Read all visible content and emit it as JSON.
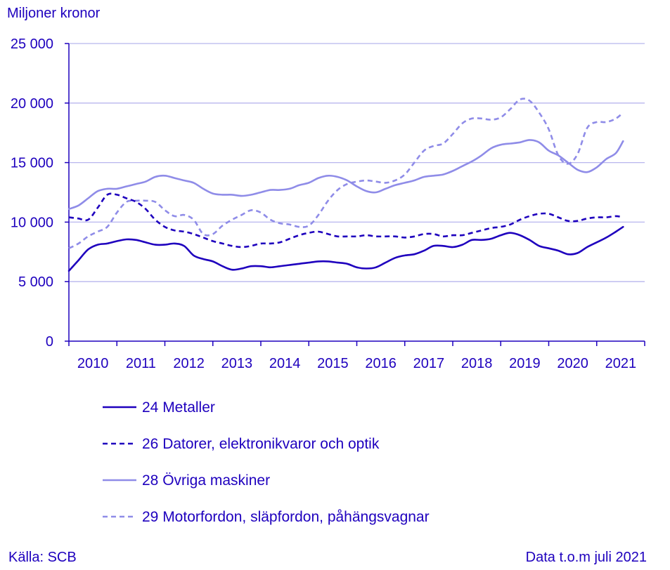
{
  "chart_data": {
    "type": "line",
    "ylabel": "Miljoner kronor",
    "ylim": [
      0,
      25000
    ],
    "yticks": [
      0,
      5000,
      10000,
      15000,
      20000,
      25000
    ],
    "ytick_labels": [
      "0",
      "5 000",
      "10 000",
      "15 000",
      "20 000",
      "25 000"
    ],
    "xlim": [
      2010,
      2022
    ],
    "x_tick_labels": [
      "2010",
      "2011",
      "2012",
      "2013",
      "2014",
      "2015",
      "2016",
      "2017",
      "2018",
      "2019",
      "2020",
      "2021"
    ],
    "grid": "horizontal",
    "legend_position": "bottom",
    "source": "Källa: SCB",
    "note": "Data t.o.m juli 2021",
    "series": [
      {
        "name": "24 Metaller",
        "color": "#1e00be",
        "dash": "solid",
        "x": [
          2010.0,
          2010.2,
          2010.4,
          2010.6,
          2010.8,
          2011.0,
          2011.2,
          2011.4,
          2011.6,
          2011.8,
          2012.0,
          2012.2,
          2012.4,
          2012.6,
          2012.8,
          2013.0,
          2013.2,
          2013.4,
          2013.6,
          2013.8,
          2014.0,
          2014.2,
          2014.4,
          2014.6,
          2014.8,
          2015.0,
          2015.2,
          2015.4,
          2015.6,
          2015.8,
          2016.0,
          2016.2,
          2016.4,
          2016.6,
          2016.8,
          2017.0,
          2017.2,
          2017.4,
          2017.6,
          2017.8,
          2018.0,
          2018.2,
          2018.4,
          2018.6,
          2018.8,
          2019.0,
          2019.2,
          2019.4,
          2019.6,
          2019.8,
          2020.0,
          2020.2,
          2020.4,
          2020.6,
          2020.8,
          2021.0,
          2021.2,
          2021.4,
          2021.55
        ],
        "values": [
          5900,
          6800,
          7700,
          8100,
          8200,
          8400,
          8550,
          8500,
          8300,
          8100,
          8100,
          8200,
          8000,
          7200,
          6900,
          6700,
          6300,
          6000,
          6100,
          6300,
          6300,
          6200,
          6300,
          6400,
          6500,
          6600,
          6700,
          6700,
          6600,
          6500,
          6200,
          6100,
          6200,
          6600,
          7000,
          7200,
          7300,
          7600,
          8000,
          8000,
          7900,
          8100,
          8500,
          8500,
          8600,
          8900,
          9100,
          8900,
          8500,
          8000,
          7800,
          7600,
          7300,
          7400,
          7900,
          8300,
          8700,
          9200,
          9600
        ]
      },
      {
        "name": "26 Datorer, elektronikvaror och optik",
        "color": "#1e00be",
        "dash": "dashed",
        "x": [
          2010.0,
          2010.2,
          2010.4,
          2010.6,
          2010.8,
          2011.0,
          2011.2,
          2011.4,
          2011.6,
          2011.8,
          2012.0,
          2012.2,
          2012.4,
          2012.6,
          2012.8,
          2013.0,
          2013.2,
          2013.4,
          2013.6,
          2013.8,
          2014.0,
          2014.2,
          2014.4,
          2014.6,
          2014.8,
          2015.0,
          2015.2,
          2015.4,
          2015.6,
          2015.8,
          2016.0,
          2016.2,
          2016.4,
          2016.6,
          2016.8,
          2017.0,
          2017.2,
          2017.4,
          2017.6,
          2017.8,
          2018.0,
          2018.2,
          2018.4,
          2018.6,
          2018.8,
          2019.0,
          2019.2,
          2019.4,
          2019.6,
          2019.8,
          2020.0,
          2020.2,
          2020.4,
          2020.6,
          2020.8,
          2021.0,
          2021.2,
          2021.4,
          2021.55
        ],
        "values": [
          10400,
          10300,
          10200,
          11200,
          12300,
          12300,
          12000,
          11700,
          11100,
          10200,
          9600,
          9300,
          9200,
          9000,
          8700,
          8400,
          8200,
          8000,
          7900,
          8000,
          8200,
          8200,
          8300,
          8600,
          8900,
          9100,
          9200,
          9000,
          8800,
          8800,
          8800,
          8900,
          8800,
          8800,
          8800,
          8700,
          8800,
          9000,
          9000,
          8800,
          8900,
          8900,
          9100,
          9300,
          9500,
          9600,
          9800,
          10200,
          10500,
          10700,
          10700,
          10400,
          10100,
          10100,
          10300,
          10400,
          10400,
          10500,
          10400
        ]
      },
      {
        "name": "28 Övriga maskiner",
        "color": "#8f8ce8",
        "dash": "solid",
        "x": [
          2010.0,
          2010.2,
          2010.4,
          2010.6,
          2010.8,
          2011.0,
          2011.2,
          2011.4,
          2011.6,
          2011.8,
          2012.0,
          2012.2,
          2012.4,
          2012.6,
          2012.8,
          2013.0,
          2013.2,
          2013.4,
          2013.6,
          2013.8,
          2014.0,
          2014.2,
          2014.4,
          2014.6,
          2014.8,
          2015.0,
          2015.2,
          2015.4,
          2015.6,
          2015.8,
          2016.0,
          2016.2,
          2016.4,
          2016.6,
          2016.8,
          2017.0,
          2017.2,
          2017.4,
          2017.6,
          2017.8,
          2018.0,
          2018.2,
          2018.4,
          2018.6,
          2018.8,
          2019.0,
          2019.2,
          2019.4,
          2019.6,
          2019.8,
          2020.0,
          2020.2,
          2020.4,
          2020.6,
          2020.8,
          2021.0,
          2021.2,
          2021.4,
          2021.55
        ],
        "values": [
          11100,
          11400,
          12000,
          12600,
          12800,
          12800,
          13000,
          13200,
          13400,
          13800,
          13900,
          13700,
          13500,
          13300,
          12800,
          12400,
          12300,
          12300,
          12200,
          12300,
          12500,
          12700,
          12700,
          12800,
          13100,
          13300,
          13700,
          13900,
          13800,
          13500,
          13000,
          12600,
          12500,
          12800,
          13100,
          13300,
          13500,
          13800,
          13900,
          14000,
          14300,
          14700,
          15100,
          15600,
          16200,
          16500,
          16600,
          16700,
          16900,
          16700,
          16000,
          15600,
          15000,
          14400,
          14200,
          14600,
          15300,
          15800,
          16800
        ]
      },
      {
        "name": "29 Motorfordon, släpfordon, påhängsvagnar",
        "color": "#8f8ce8",
        "dash": "dashed",
        "x": [
          2010.0,
          2010.2,
          2010.4,
          2010.6,
          2010.8,
          2011.0,
          2011.2,
          2011.4,
          2011.6,
          2011.8,
          2012.0,
          2012.2,
          2012.4,
          2012.6,
          2012.8,
          2013.0,
          2013.2,
          2013.4,
          2013.6,
          2013.8,
          2014.0,
          2014.2,
          2014.4,
          2014.6,
          2014.8,
          2015.0,
          2015.2,
          2015.4,
          2015.6,
          2015.8,
          2016.0,
          2016.2,
          2016.4,
          2016.6,
          2016.8,
          2017.0,
          2017.2,
          2017.4,
          2017.6,
          2017.8,
          2018.0,
          2018.2,
          2018.4,
          2018.6,
          2018.8,
          2019.0,
          2019.2,
          2019.4,
          2019.6,
          2019.8,
          2020.0,
          2020.2,
          2020.4,
          2020.6,
          2020.8,
          2021.0,
          2021.2,
          2021.4,
          2021.55
        ],
        "values": [
          7800,
          8200,
          8800,
          9200,
          9600,
          10800,
          11700,
          11800,
          11800,
          11700,
          11000,
          10500,
          10600,
          10200,
          9000,
          9000,
          9700,
          10200,
          10600,
          11000,
          10800,
          10200,
          9900,
          9800,
          9600,
          9700,
          10600,
          11800,
          12700,
          13200,
          13400,
          13500,
          13400,
          13300,
          13500,
          14000,
          15000,
          16000,
          16400,
          16600,
          17400,
          18300,
          18700,
          18700,
          18600,
          18800,
          19500,
          20300,
          20200,
          19200,
          17800,
          15600,
          14900,
          15700,
          17900,
          18400,
          18400,
          18700,
          19200
        ]
      }
    ]
  }
}
